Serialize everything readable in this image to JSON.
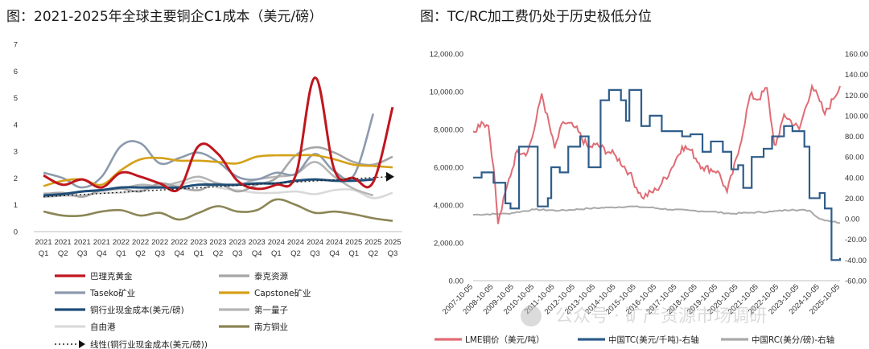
{
  "left_title": "图：2021-2025年全球主要铜企C1成本（美元/磅）",
  "right_title": "图：TC/RC加工费仍处于历史极低分位",
  "watermark": "公众号 · 矿产资源市场调研",
  "colors": {
    "barrick": "#c0161e",
    "teck": "#a6a6a6",
    "taseko": "#8c9aad",
    "capstone": "#d4a017",
    "industry": "#1f4e79",
    "firstquantum": "#b5b5b5",
    "freeport": "#d9d9d9",
    "southern": "#8b8555",
    "lme": "#e06c75",
    "tc": "#2f5d8a",
    "rc": "#a9a9a9"
  },
  "chart_data": [
    {
      "type": "line",
      "title": "2021-2025年全球主要铜企C1成本（美元/磅）",
      "categories": [
        "2021 Q1",
        "2021 Q2",
        "2021 Q3",
        "2021 Q4",
        "2022 Q1",
        "2022 Q2",
        "2022 Q3",
        "2022 Q4",
        "2023 Q1",
        "2023 Q2",
        "2023 Q3",
        "2023 Q4",
        "2024 Q1",
        "2024 Q2",
        "2024 Q3",
        "2024 Q4",
        "2025 Q1",
        "2025 Q2",
        "2025 Q3"
      ],
      "category_years": [
        "2021",
        "2021",
        "2021",
        "2021",
        "2022",
        "2022",
        "2022",
        "2022",
        "2023",
        "2023",
        "2023",
        "2023",
        "2024",
        "2024",
        "2024",
        "2024",
        "2025",
        "2025",
        "2025"
      ],
      "category_quarters": [
        "Q1",
        "Q2",
        "Q3",
        "Q4",
        "Q1",
        "Q2",
        "Q3",
        "Q4",
        "Q1",
        "Q2",
        "Q3",
        "Q4",
        "Q1",
        "Q2",
        "Q3",
        "Q4",
        "Q1",
        "Q2",
        "Q3"
      ],
      "ylim": [
        0,
        7
      ],
      "yticks": [
        "0",
        "1",
        "2",
        "3",
        "4",
        "5",
        "6",
        "7"
      ],
      "series": [
        {
          "name": "巴理克黄金",
          "key": "barrick",
          "values": [
            2.1,
            1.75,
            1.95,
            1.65,
            2.2,
            2.05,
            1.8,
            1.6,
            3.2,
            2.9,
            1.9,
            1.6,
            1.75,
            2.1,
            5.75,
            2.3,
            2.0,
            1.85,
            4.65
          ]
        },
        {
          "name": "泰克资源",
          "key": "teck",
          "values": [
            1.4,
            1.45,
            1.3,
            1.55,
            1.6,
            1.5,
            1.8,
            1.65,
            1.55,
            1.8,
            1.5,
            1.75,
            2.0,
            2.85,
            3.15,
            2.95,
            2.6,
            2.5,
            2.8
          ]
        },
        {
          "name": "Taseko矿业",
          "key": "taseko",
          "values": [
            2.2,
            2.0,
            1.65,
            2.05,
            3.2,
            3.3,
            2.55,
            2.75,
            2.95,
            2.6,
            2.05,
            1.95,
            2.2,
            2.15,
            2.9,
            2.25,
            2.1,
            4.4,
            null
          ]
        },
        {
          "name": "Capstone矿业",
          "key": "capstone",
          "values": [
            1.7,
            1.9,
            1.95,
            1.75,
            2.3,
            2.7,
            2.75,
            2.65,
            2.65,
            2.6,
            2.55,
            2.8,
            2.85,
            2.85,
            2.85,
            2.7,
            2.5,
            2.45,
            2.4
          ]
        },
        {
          "name": "铜行业现金成本(美元/磅)",
          "key": "industry",
          "values": [
            1.35,
            1.4,
            1.5,
            1.55,
            1.65,
            1.65,
            1.65,
            1.65,
            1.75,
            1.75,
            1.75,
            1.8,
            1.8,
            1.9,
            1.95,
            1.9,
            1.9,
            1.95,
            null
          ]
        },
        {
          "name": "第一量子",
          "key": "firstquantum",
          "values": [
            1.3,
            1.35,
            1.5,
            1.55,
            1.6,
            1.75,
            1.7,
            1.85,
            2.05,
            1.8,
            1.75,
            1.95,
            2.05,
            2.15,
            2.6,
            2.05,
            1.6,
            1.35,
            null
          ]
        },
        {
          "name": "自由港",
          "key": "freeport",
          "values": [
            1.45,
            1.35,
            1.35,
            1.45,
            1.45,
            1.55,
            1.65,
            1.75,
            1.9,
            1.65,
            1.55,
            1.45,
            1.45,
            1.5,
            1.4,
            1.55,
            1.55,
            1.25,
            1.45
          ]
        },
        {
          "name": "南方铜业",
          "key": "southern",
          "values": [
            0.75,
            0.6,
            0.6,
            0.75,
            0.8,
            0.6,
            0.7,
            0.45,
            0.7,
            0.95,
            0.75,
            0.8,
            1.2,
            1.0,
            0.7,
            0.75,
            0.65,
            0.5,
            0.4
          ]
        }
      ],
      "trendline": {
        "name": "线性(铜行业现金成本(美元/磅))",
        "start": 1.3,
        "end": 2.05
      }
    },
    {
      "type": "line",
      "title": "TC/RC加工费仍处于历史极低分位",
      "xlim": [
        "2007-10-05",
        "2025-10-05"
      ],
      "xticks": [
        "2007-10-05",
        "2008-10-05",
        "2009-10-05",
        "2010-10-05",
        "2011-10-05",
        "2012-10-05",
        "2013-10-05",
        "2014-10-05",
        "2015-10-05",
        "2016-10-05",
        "2017-10-05",
        "2018-10-05",
        "2019-10-05",
        "2020-10-05",
        "2021-10-05",
        "2022-10-05",
        "2023-10-05",
        "2024-10-05",
        "2025-10-05"
      ],
      "y_left": {
        "ylim": [
          0,
          12000
        ],
        "ticks": [
          "0.00",
          "2,000.00",
          "4,000.00",
          "6,000.00",
          "8,000.00",
          "10,000.00",
          "12,000.00"
        ]
      },
      "y_right": {
        "ylim": [
          -60,
          160
        ],
        "ticks": [
          "160.00",
          "140.00",
          "120.00",
          "100.00",
          "80.00",
          "60.00",
          "40.00",
          "20.00",
          "0.00",
          "-20.00",
          "-40.00",
          "-60.00"
        ]
      },
      "series": [
        {
          "name": "LME铜价（美元/吨）",
          "key": "lme",
          "axis": "left",
          "x": [
            "2007-10-05",
            "2008-03-05",
            "2008-07-05",
            "2008-10-05",
            "2008-12-25",
            "2009-06-05",
            "2009-12-05",
            "2010-06-05",
            "2010-10-05",
            "2011-02-15",
            "2011-10-05",
            "2012-03-05",
            "2012-10-05",
            "2013-06-05",
            "2013-10-05",
            "2014-06-05",
            "2014-10-05",
            "2015-06-05",
            "2016-01-15",
            "2016-10-05",
            "2017-06-05",
            "2018-01-05",
            "2018-06-05",
            "2019-01-05",
            "2019-10-05",
            "2020-03-20",
            "2020-10-05",
            "2021-05-05",
            "2021-10-05",
            "2022-03-05",
            "2022-07-15",
            "2022-10-05",
            "2023-01-05",
            "2023-10-05",
            "2024-05-20",
            "2024-10-05",
            "2025-01-05",
            "2025-06-05",
            "2025-10-05"
          ],
          "y": [
            7900,
            8400,
            8200,
            6000,
            3000,
            5000,
            6900,
            6800,
            8000,
            9900,
            7000,
            8400,
            8100,
            7000,
            7200,
            6800,
            6600,
            5700,
            4400,
            4800,
            5800,
            7100,
            6900,
            6000,
            5800,
            4700,
            6700,
            9800,
            9600,
            10200,
            7200,
            7600,
            8800,
            8000,
            10300,
            9500,
            8800,
            9600,
            10300
          ]
        },
        {
          "name": "中国TC(美元/千吨)-右轴",
          "key": "tc",
          "axis": "right",
          "x": [
            "2007-10-05",
            "2008-03-05",
            "2008-07-05",
            "2008-10-05",
            "2009-05-05",
            "2009-08-05",
            "2010-01-05",
            "2010-07-05",
            "2010-12-05",
            "2011-01-05",
            "2011-06-05",
            "2011-08-05",
            "2012-01-05",
            "2012-06-05",
            "2013-01-05",
            "2013-06-05",
            "2014-01-05",
            "2014-06-05",
            "2015-01-05",
            "2015-04-05",
            "2015-06-05",
            "2016-01-05",
            "2016-06-05",
            "2017-01-05",
            "2017-06-05",
            "2018-01-05",
            "2018-06-05",
            "2019-01-05",
            "2019-06-05",
            "2020-01-05",
            "2020-06-05",
            "2020-10-05",
            "2021-01-05",
            "2021-06-05",
            "2022-01-05",
            "2022-06-05",
            "2023-01-05",
            "2023-06-05",
            "2024-01-05",
            "2024-04-05",
            "2024-10-05",
            "2025-01-05",
            "2025-05-05",
            "2025-10-05"
          ],
          "y": [
            40,
            45,
            45,
            35,
            15,
            10,
            70,
            70,
            12,
            12,
            20,
            50,
            45,
            70,
            80,
            50,
            115,
            125,
            115,
            95,
            125,
            90,
            100,
            85,
            85,
            80,
            82,
            65,
            75,
            65,
            48,
            52,
            30,
            60,
            68,
            80,
            90,
            85,
            70,
            20,
            25,
            10,
            -40,
            -38
          ]
        },
        {
          "name": "中国RC(美分/磅)-右轴",
          "key": "rc",
          "axis": "right",
          "x": [
            "2007-10-05",
            "2009-06-05",
            "2010-10-05",
            "2012-01-05",
            "2013-06-05",
            "2014-06-05",
            "2015-06-05",
            "2016-06-05",
            "2017-06-05",
            "2018-06-05",
            "2019-06-05",
            "2020-06-05",
            "2021-06-05",
            "2022-06-05",
            "2023-06-05",
            "2024-04-05",
            "2024-10-05",
            "2025-10-05"
          ],
          "y": [
            4,
            5,
            9,
            8,
            10,
            11,
            12,
            11,
            9,
            8,
            7,
            5,
            6,
            7,
            9,
            8,
            0,
            -4
          ]
        }
      ]
    }
  ],
  "legend_left": [
    {
      "label": "巴理克黄金",
      "key": "barrick",
      "dotted": false
    },
    {
      "label": "泰克资源",
      "key": "teck",
      "dotted": false
    },
    {
      "label": "Taseko矿业",
      "key": "taseko",
      "dotted": false
    },
    {
      "label": "Capstone矿业",
      "key": "capstone",
      "dotted": false
    },
    {
      "label": "铜行业现金成本(美元/磅)",
      "key": "industry",
      "dotted": false
    },
    {
      "label": "第一量子",
      "key": "firstquantum",
      "dotted": false
    },
    {
      "label": "自由港",
      "key": "freeport",
      "dotted": false
    },
    {
      "label": "南方铜业",
      "key": "southern",
      "dotted": false
    },
    {
      "label": "线性(铜行业现金成本(美元/磅))",
      "key": "trend",
      "dotted": true
    }
  ],
  "legend_right": [
    {
      "label": "LME铜价（美元/吨）",
      "key": "lme"
    },
    {
      "label": "中国TC(美元/千吨)-右轴",
      "key": "tc"
    },
    {
      "label": "中国RC(美分/磅)-右轴",
      "key": "rc"
    }
  ]
}
